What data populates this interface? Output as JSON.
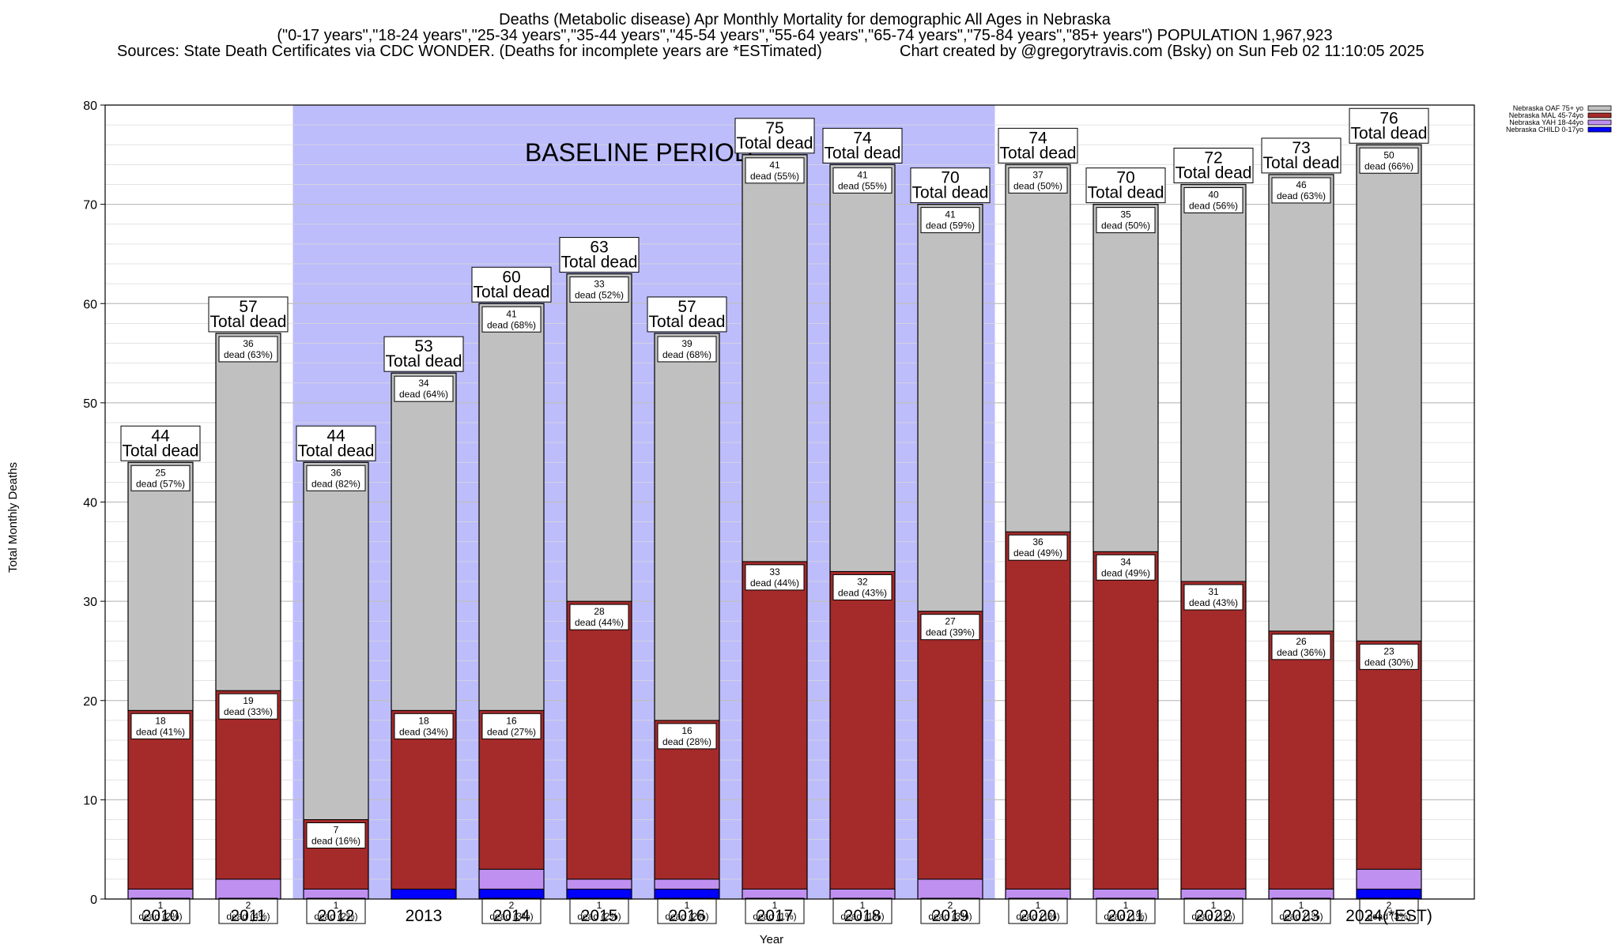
{
  "chart_data": {
    "type": "bar",
    "stacked": true,
    "title_lines": [
      "Deaths (Metabolic disease) Apr Monthly Mortality for demographic All Ages in Nebraska",
      "(\"0-17 years\",\"18-24 years\",\"25-34 years\",\"35-44 years\",\"45-54 years\",\"55-64 years\",\"65-74 years\",\"75-84 years\",\"85+ years\") POPULATION 1,967,923",
      "Sources: State Death Certificates via CDC WONDER. (Deaths for incomplete years are *ESTimated)",
      "Chart created by @gregorytravis.com (Bsky) on Sun Feb 02 11:10:05 2025"
    ],
    "xlabel": "Year",
    "ylabel": "Total Monthly Deaths",
    "ylim": [
      0,
      80
    ],
    "yticks": [
      0,
      10,
      20,
      30,
      40,
      50,
      60,
      70,
      80
    ],
    "grid": true,
    "legend_position": "top-right",
    "baseline_label": "BASELINE PERIOD",
    "baseline_range": [
      "2012",
      "2019"
    ],
    "total_label": "Total dead",
    "categories": [
      "2010",
      "2011",
      "2012",
      "2013",
      "2014",
      "2015",
      "2016",
      "2017",
      "2018",
      "2019",
      "2020",
      "2021",
      "2022",
      "2023",
      "2024(*EST)"
    ],
    "totals": [
      44,
      57,
      44,
      53,
      60,
      63,
      57,
      75,
      74,
      70,
      74,
      70,
      72,
      73,
      76
    ],
    "series": [
      {
        "name": "Nebraska CHILD 0-17yo",
        "color": "#0000ff",
        "values": [
          0,
          0,
          0,
          1,
          1,
          1,
          1,
          0,
          0,
          0,
          0,
          0,
          0,
          0,
          1
        ],
        "labels": [
          "",
          "",
          "",
          "",
          "",
          "",
          "",
          "",
          "",
          "",
          "",
          "",
          "",
          "",
          ""
        ]
      },
      {
        "name": "Nebraska YAH 18-44yo",
        "color": "#c090f0",
        "values": [
          1,
          2,
          1,
          0,
          2,
          1,
          1,
          1,
          1,
          2,
          1,
          1,
          1,
          1,
          2
        ],
        "labels": [
          "1\ndead (2%)",
          "2\ndead (4%)",
          "1\ndead (2%)",
          "",
          "2\ndead (3%)",
          "1\ndead (2%)",
          "1\ndead (2%)",
          "1\ndead (1%)",
          "1\ndead (1%)",
          "2\ndead (3%)",
          "1\ndead (1%)",
          "1\ndead (1%)",
          "1\ndead (1%)",
          "1\ndead (1%)",
          "2\ndead (3%)"
        ]
      },
      {
        "name": "Nebraska MAL 45-74yo",
        "color": "#a52a2a",
        "values": [
          18,
          19,
          7,
          18,
          16,
          28,
          16,
          33,
          32,
          27,
          36,
          34,
          31,
          26,
          23
        ],
        "labels": [
          "18\ndead (41%)",
          "19\ndead (33%)",
          "7\ndead (16%)",
          "18\ndead (34%)",
          "16\ndead (27%)",
          "28\ndead (44%)",
          "16\ndead (28%)",
          "33\ndead (44%)",
          "32\ndead (43%)",
          "27\ndead (39%)",
          "36\ndead (49%)",
          "34\ndead (49%)",
          "31\ndead (43%)",
          "26\ndead (36%)",
          "23\ndead (30%)"
        ]
      },
      {
        "name": "Nebraska OAF 75+ yo",
        "color": "#c0c0c0",
        "values": [
          25,
          36,
          36,
          34,
          41,
          33,
          39,
          41,
          41,
          41,
          37,
          35,
          40,
          46,
          50
        ],
        "labels": [
          "25\ndead (57%)",
          "36\ndead (63%)",
          "36\ndead (82%)",
          "34\ndead (64%)",
          "41\ndead (68%)",
          "33\ndead (52%)",
          "39\ndead (68%)",
          "41\ndead (55%)",
          "41\ndead (55%)",
          "41\ndead (59%)",
          "37\ndead (50%)",
          "35\ndead (50%)",
          "40\ndead (56%)",
          "46\ndead (63%)",
          "50\ndead (66%)"
        ]
      }
    ]
  }
}
